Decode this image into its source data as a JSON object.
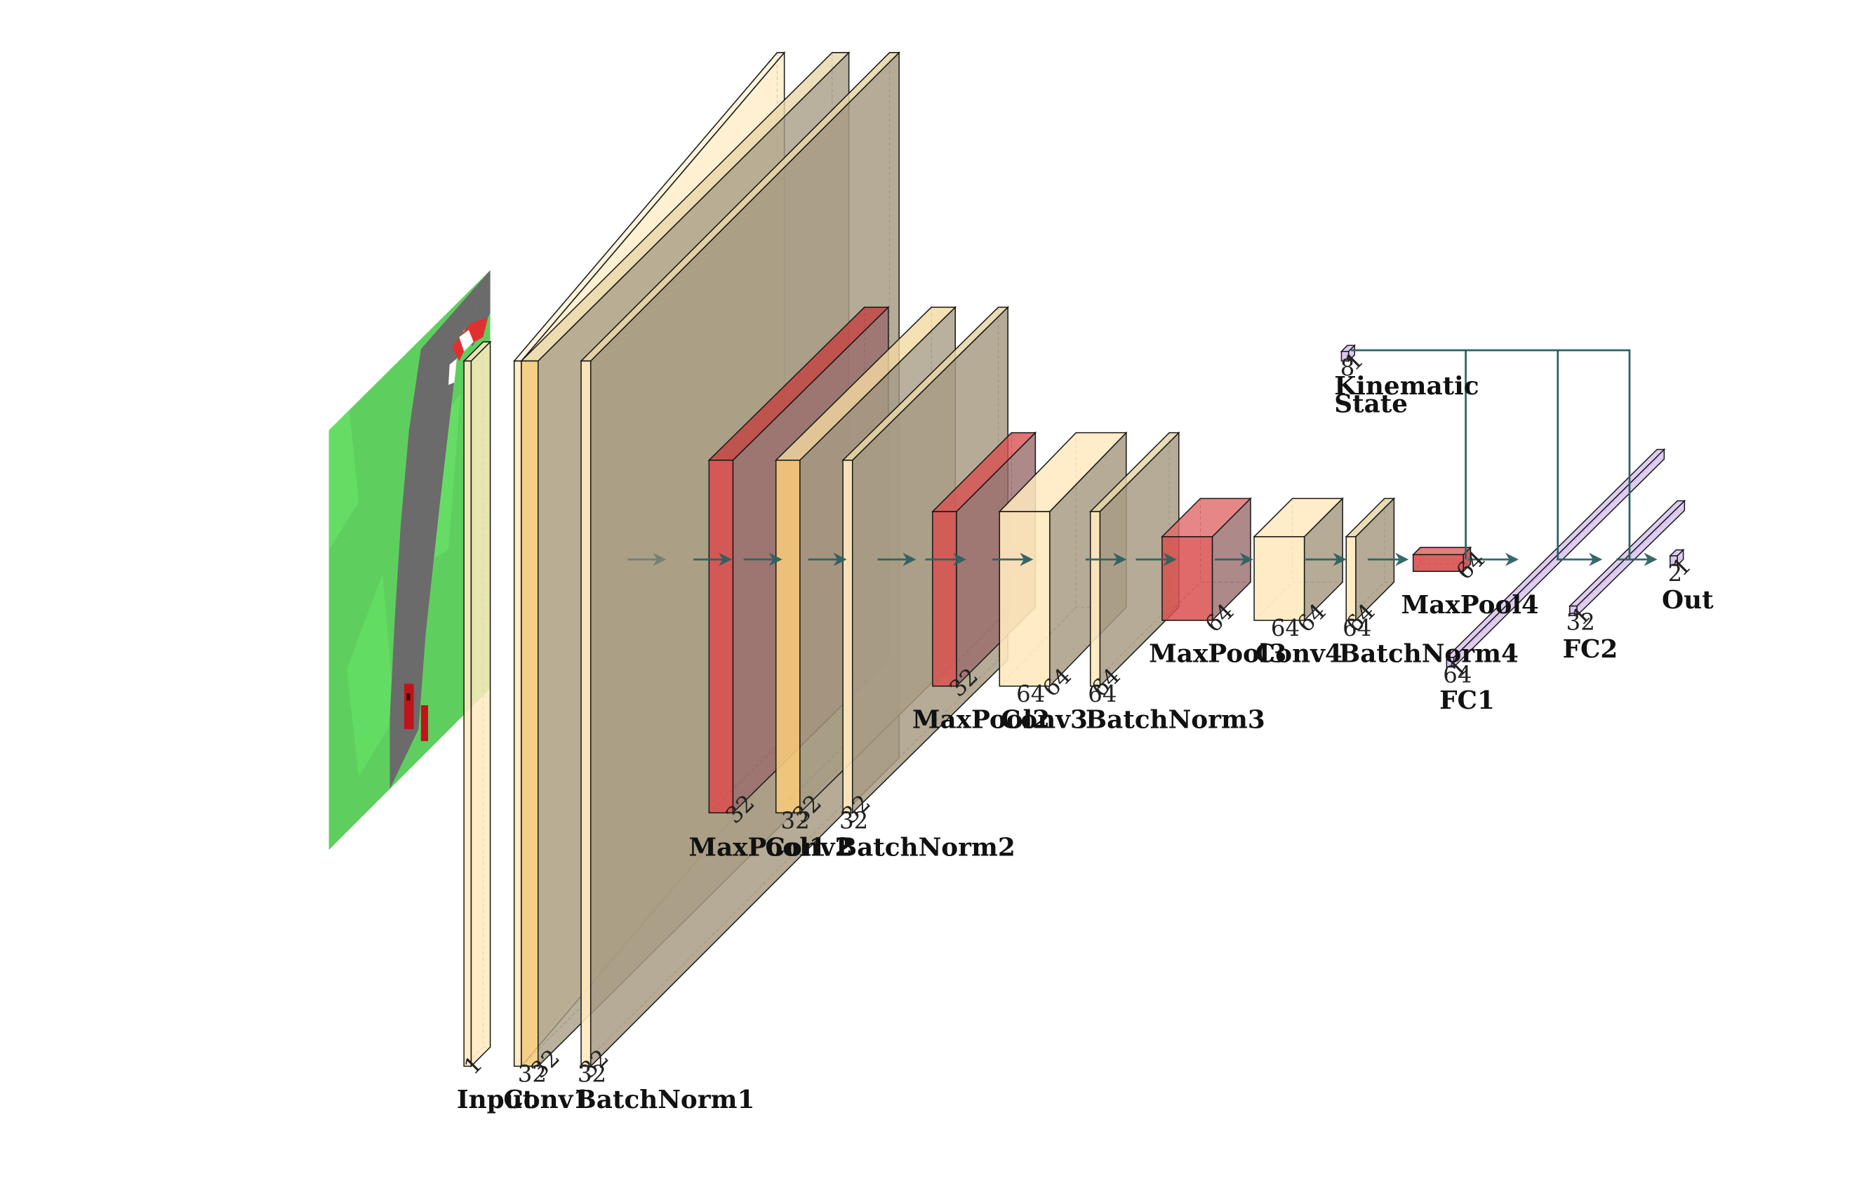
{
  "colors": {
    "conv_front": "#FFE9BE",
    "conv_band": "#F5C97A",
    "batchnorm": "#A89C84",
    "pool": "#D85050",
    "fc": "#D8C4EE",
    "connection": "#2E6161",
    "edge": "#1a1a1a"
  },
  "input_image": {
    "description_icon": "track-image-icon",
    "grass": "#5ECF5E",
    "road": "#6B6B6B"
  },
  "layers": [
    {
      "id": "input",
      "label": "Input",
      "dims": [
        "1"
      ]
    },
    {
      "id": "conv1",
      "label": "Conv1",
      "dims": [
        "32",
        "32"
      ]
    },
    {
      "id": "batchnorm1",
      "label": "BatchNorm1",
      "dims": [
        "32",
        "32"
      ]
    },
    {
      "id": "maxpool1",
      "label": "MaxPool1",
      "dims": [
        "32"
      ]
    },
    {
      "id": "conv2",
      "label": "Conv2",
      "dims": [
        "32",
        "32"
      ]
    },
    {
      "id": "batchnorm2",
      "label": "BatchNorm2",
      "dims": [
        "32",
        "32"
      ]
    },
    {
      "id": "maxpool2",
      "label": "MaxPool2",
      "dims": [
        "32"
      ]
    },
    {
      "id": "conv3",
      "label": "Conv3",
      "dims": [
        "64",
        "64"
      ]
    },
    {
      "id": "batchnorm3",
      "label": "BatchNorm3",
      "dims": [
        "64",
        "64"
      ]
    },
    {
      "id": "maxpool3",
      "label": "MaxPool3",
      "dims": [
        "64"
      ]
    },
    {
      "id": "conv4",
      "label": "Conv4",
      "dims": [
        "64",
        "64"
      ]
    },
    {
      "id": "batchnorm4",
      "label": "BatchNorm4",
      "dims": [
        "64",
        "64"
      ]
    },
    {
      "id": "maxpool4",
      "label": "MaxPool4",
      "dims": [
        "64"
      ]
    },
    {
      "id": "fc1",
      "label": "FC1",
      "dims": [
        "64",
        "1"
      ]
    },
    {
      "id": "fc2",
      "label": "FC2",
      "dims": [
        "32",
        "1"
      ]
    },
    {
      "id": "out",
      "label": "Out",
      "dims": [
        "2",
        "1"
      ]
    },
    {
      "id": "kinematic",
      "label_line1": "Kinematic",
      "label_line2": "State",
      "dims": [
        "8",
        "1"
      ]
    }
  ]
}
